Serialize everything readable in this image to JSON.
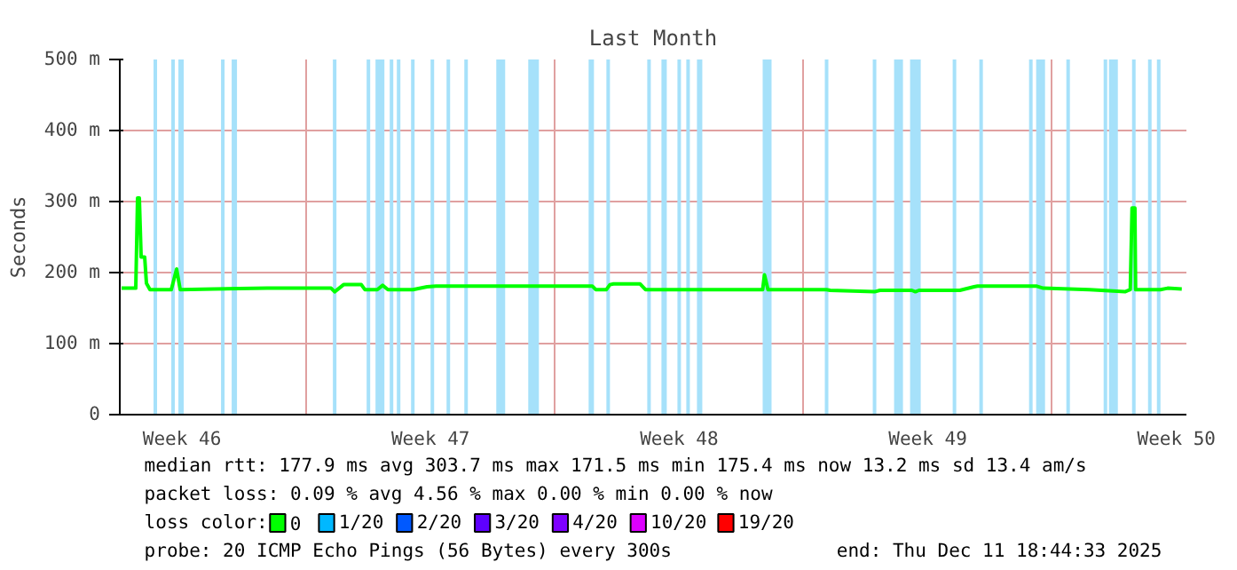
{
  "chart_data": {
    "type": "line",
    "title": "Last Month",
    "ylabel": "Seconds",
    "xlim": [
      "2025-11-11T18:00",
      "2025-12-11T18:44"
    ],
    "xticks": [
      {
        "value": "2025-11-13T12:00",
        "label": "Week 46"
      },
      {
        "value": "2025-11-17T00:00",
        "label": null
      },
      {
        "value": "2025-11-20T12:00",
        "label": "Week 47"
      },
      {
        "value": "2025-11-24T00:00",
        "label": null
      },
      {
        "value": "2025-11-27T12:00",
        "label": "Week 48"
      },
      {
        "value": "2025-12-01T00:00",
        "label": null
      },
      {
        "value": "2025-12-04T12:00",
        "label": "Week 49"
      },
      {
        "value": "2025-12-08T00:00",
        "label": null
      },
      {
        "value": "2025-12-11T12:00",
        "label": "Week 50"
      }
    ],
    "ylim": [
      0,
      500
    ],
    "yticks": [
      0,
      {
        "value": 100,
        "label": "100 m"
      },
      {
        "value": 200,
        "label": "200 m"
      },
      {
        "value": 300,
        "label": "300 m"
      },
      {
        "value": 400,
        "label": "400 m"
      },
      {
        "value": 500,
        "label": "500 m"
      }
    ],
    "grid": true,
    "legend": "bottom",
    "legend_title": "loss color:",
    "series": [
      {
        "name": "0",
        "color": "#00ff00",
        "x": [
          "2025-11-11T19:12",
          "2025-11-12T04:48",
          "2025-11-12T06:00",
          "2025-11-12T07:12",
          "2025-11-12T08:24",
          "2025-11-12T10:48",
          "2025-11-12T12:00",
          "2025-11-12T14:24",
          "2025-11-13T04:48",
          "2025-11-13T08:24",
          "2025-11-13T10:48",
          "2025-11-14T09:36",
          "2025-11-15T21:36",
          "2025-11-17T16:48",
          "2025-11-17T19:12",
          "2025-11-18T01:12",
          "2025-11-18T13:12",
          "2025-11-18T15:36",
          "2025-11-19T00:00",
          "2025-11-19T03:36",
          "2025-11-19T07:12",
          "2025-11-20T00:00",
          "2025-11-20T09:36",
          "2025-11-20T15:36",
          "2025-11-25T01:12",
          "2025-11-25T03:36",
          "2025-11-25T10:48",
          "2025-11-25T13:12",
          "2025-11-25T15:36",
          "2025-11-26T09:36",
          "2025-11-26T13:12",
          "2025-11-29T20:24",
          "2025-11-29T21:36",
          "2025-11-30T00:00",
          "2025-12-01T15:36",
          "2025-12-01T18:00",
          "2025-12-03T00:00",
          "2025-12-03T03:36",
          "2025-12-04T01:12",
          "2025-12-04T03:36",
          "2025-12-04T06:00",
          "2025-12-05T09:36",
          "2025-12-05T19:12",
          "2025-12-05T21:36",
          "2025-12-07T13:12",
          "2025-12-07T18:00",
          "2025-12-09T01:12",
          "2025-12-10T01:12",
          "2025-12-10T04:48",
          "2025-12-10T06:00",
          "2025-12-10T07:55",
          "2025-12-10T08:24",
          "2025-12-11T01:12",
          "2025-12-11T06:00",
          "2025-12-11T15:36"
        ],
        "values": [
          178,
          178,
          305,
          305,
          222,
          222,
          185,
          176,
          176,
          205,
          176,
          177,
          178,
          178,
          173,
          183,
          183,
          176,
          176,
          182,
          176,
          176,
          180,
          181,
          181,
          176,
          176,
          183,
          184,
          184,
          176,
          176,
          197,
          176,
          176,
          175,
          173,
          175,
          175,
          173,
          175,
          175,
          180,
          181,
          181,
          178,
          176,
          173,
          176,
          291,
          291,
          176,
          176,
          178,
          177
        ]
      },
      {
        "name": "1/20",
        "color": "#00b8ff"
      },
      {
        "name": "2/20",
        "color": "#0059ff"
      },
      {
        "name": "3/20",
        "color": "#5e00ff"
      },
      {
        "name": "4/20",
        "color": "#7e00ff"
      },
      {
        "name": "10/20",
        "color": "#dd00ff"
      },
      {
        "name": "19/20",
        "color": "#ff0000"
      }
    ],
    "bands": [
      {
        "axis": "x",
        "from": "2025-11-12T16:48",
        "to": "2025-11-12T19:12",
        "color": "#a6e1fa"
      },
      {
        "axis": "x",
        "from": "2025-11-13T04:48",
        "to": "2025-11-13T07:12",
        "color": "#a6e1fa"
      },
      {
        "axis": "x",
        "from": "2025-11-13T09:36",
        "to": "2025-11-13T13:12",
        "color": "#a6e1fa"
      },
      {
        "axis": "x",
        "from": "2025-11-14T14:24",
        "to": "2025-11-14T16:48",
        "color": "#a6e1fa"
      },
      {
        "axis": "x",
        "from": "2025-11-14T21:36",
        "to": "2025-11-15T01:12",
        "color": "#a6e1fa"
      },
      {
        "axis": "x",
        "from": "2025-11-17T18:00",
        "to": "2025-11-17T20:24",
        "color": "#a6e1fa"
      },
      {
        "axis": "x",
        "from": "2025-11-18T16:48",
        "to": "2025-11-18T19:12",
        "color": "#a6e1fa"
      },
      {
        "axis": "x",
        "from": "2025-11-18T22:48",
        "to": "2025-11-19T04:48",
        "color": "#a6e1fa"
      },
      {
        "axis": "x",
        "from": "2025-11-19T08:24",
        "to": "2025-11-19T10:48",
        "color": "#a6e1fa"
      },
      {
        "axis": "x",
        "from": "2025-11-19T13:12",
        "to": "2025-11-19T15:36",
        "color": "#a6e1fa"
      },
      {
        "axis": "x",
        "from": "2025-11-19T22:48",
        "to": "2025-11-20T01:12",
        "color": "#a6e1fa"
      },
      {
        "axis": "x",
        "from": "2025-11-20T12:00",
        "to": "2025-11-20T14:24",
        "color": "#a6e1fa"
      },
      {
        "axis": "x",
        "from": "2025-11-20T22:48",
        "to": "2025-11-21T01:12",
        "color": "#a6e1fa"
      },
      {
        "axis": "x",
        "from": "2025-11-21T10:48",
        "to": "2025-11-21T13:12",
        "color": "#a6e1fa"
      },
      {
        "axis": "x",
        "from": "2025-11-22T08:24",
        "to": "2025-11-22T14:24",
        "color": "#a6e1fa"
      },
      {
        "axis": "x",
        "from": "2025-11-23T06:00",
        "to": "2025-11-23T13:12",
        "color": "#a6e1fa"
      },
      {
        "axis": "x",
        "from": "2025-11-24T22:48",
        "to": "2025-11-25T02:24",
        "color": "#a6e1fa"
      },
      {
        "axis": "x",
        "from": "2025-11-25T10:48",
        "to": "2025-11-25T13:12",
        "color": "#a6e1fa"
      },
      {
        "axis": "x",
        "from": "2025-11-26T14:24",
        "to": "2025-11-26T16:48",
        "color": "#a6e1fa"
      },
      {
        "axis": "x",
        "from": "2025-11-27T00:00",
        "to": "2025-11-27T03:36",
        "color": "#a6e1fa"
      },
      {
        "axis": "x",
        "from": "2025-11-27T10:48",
        "to": "2025-11-27T13:12",
        "color": "#a6e1fa"
      },
      {
        "axis": "x",
        "from": "2025-11-27T16:48",
        "to": "2025-11-27T19:12",
        "color": "#a6e1fa"
      },
      {
        "axis": "x",
        "from": "2025-11-28T00:00",
        "to": "2025-11-28T03:36",
        "color": "#a6e1fa"
      },
      {
        "axis": "x",
        "from": "2025-11-29T20:24",
        "to": "2025-11-30T02:24",
        "color": "#a6e1fa"
      },
      {
        "axis": "x",
        "from": "2025-12-01T14:24",
        "to": "2025-12-01T16:48",
        "color": "#a6e1fa"
      },
      {
        "axis": "x",
        "from": "2025-12-02T22:48",
        "to": "2025-12-03T01:12",
        "color": "#a6e1fa"
      },
      {
        "axis": "x",
        "from": "2025-12-03T13:12",
        "to": "2025-12-03T19:12",
        "color": "#a6e1fa"
      },
      {
        "axis": "x",
        "from": "2025-12-04T00:00",
        "to": "2025-12-04T07:12",
        "color": "#a6e1fa"
      },
      {
        "axis": "x",
        "from": "2025-12-05T04:48",
        "to": "2025-12-05T07:12",
        "color": "#a6e1fa"
      },
      {
        "axis": "x",
        "from": "2025-12-05T22:48",
        "to": "2025-12-06T01:12",
        "color": "#a6e1fa"
      },
      {
        "axis": "x",
        "from": "2025-12-07T08:24",
        "to": "2025-12-07T10:48",
        "color": "#a6e1fa"
      },
      {
        "axis": "x",
        "from": "2025-12-07T13:12",
        "to": "2025-12-07T19:12",
        "color": "#a6e1fa"
      },
      {
        "axis": "x",
        "from": "2025-12-08T09:36",
        "to": "2025-12-08T12:00",
        "color": "#a6e1fa"
      },
      {
        "axis": "x",
        "from": "2025-12-09T10:48",
        "to": "2025-12-09T13:12",
        "color": "#a6e1fa"
      },
      {
        "axis": "x",
        "from": "2025-12-09T14:24",
        "to": "2025-12-09T20:24",
        "color": "#a6e1fa"
      },
      {
        "axis": "x",
        "from": "2025-12-10T06:00",
        "to": "2025-12-10T08:24",
        "color": "#a6e1fa"
      },
      {
        "axis": "x",
        "from": "2025-12-10T16:48",
        "to": "2025-12-10T19:12",
        "color": "#a6e1fa"
      },
      {
        "axis": "x",
        "from": "2025-12-10T22:48",
        "to": "2025-12-11T01:12",
        "color": "#a6e1fa"
      }
    ],
    "annotations": [
      "median rtt:  177.9 ms avg  303.7 ms max  171.5 ms min  175.4 ms now  13.2 ms sd  13.4   am/s",
      "packet loss: 0.09 % avg  4.56 % max  0.00 % min  0.00 % now",
      "probe:       20 ICMP Echo Pings (56 Bytes) every 300s",
      "end: Thu Dec 11 18:44:33 2025"
    ]
  }
}
